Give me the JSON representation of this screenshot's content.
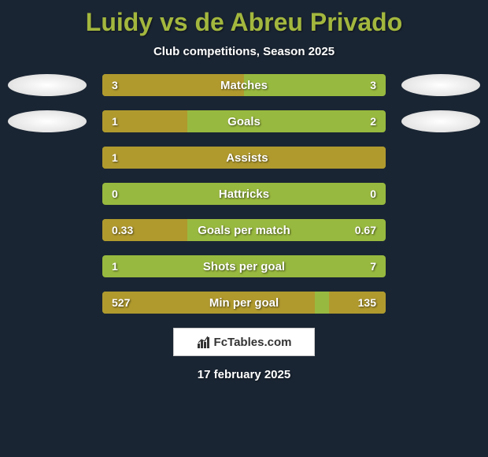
{
  "title": "Luidy vs de Abreu Privado",
  "subtitle": "Club competitions, Season 2025",
  "date": "17 february 2025",
  "brand": "FcTables.com",
  "colors": {
    "background": "#1a2533",
    "title": "#a3b73e",
    "bar_base": "#98b93f",
    "bar_fill": "#b09a2e",
    "text": "#ffffff"
  },
  "stats": [
    {
      "label": "Matches",
      "left_value": "3",
      "right_value": "3",
      "left_fill_pct": 50,
      "right_fill_pct": 0,
      "show_ovals": true
    },
    {
      "label": "Goals",
      "left_value": "1",
      "right_value": "2",
      "left_fill_pct": 30,
      "right_fill_pct": 0,
      "show_ovals": true
    },
    {
      "label": "Assists",
      "left_value": "1",
      "right_value": "",
      "left_fill_pct": 100,
      "right_fill_pct": 0,
      "show_ovals": false
    },
    {
      "label": "Hattricks",
      "left_value": "0",
      "right_value": "0",
      "left_fill_pct": 0,
      "right_fill_pct": 0,
      "show_ovals": false
    },
    {
      "label": "Goals per match",
      "left_value": "0.33",
      "right_value": "0.67",
      "left_fill_pct": 30,
      "right_fill_pct": 0,
      "show_ovals": false
    },
    {
      "label": "Shots per goal",
      "left_value": "1",
      "right_value": "7",
      "left_fill_pct": 0,
      "right_fill_pct": 0,
      "show_ovals": false
    },
    {
      "label": "Min per goal",
      "left_value": "527",
      "right_value": "135",
      "left_fill_pct": 75,
      "right_fill_pct": 20,
      "show_ovals": false
    }
  ]
}
